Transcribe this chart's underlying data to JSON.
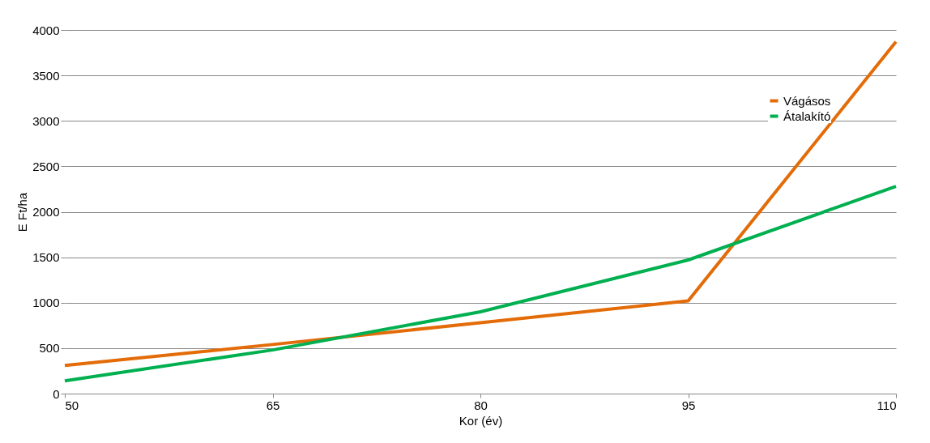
{
  "chart_data": {
    "type": "line",
    "xlabel": "Kor (év)",
    "ylabel": "E Ft/ha",
    "x": [
      50,
      65,
      80,
      95,
      110
    ],
    "series": [
      {
        "name": "Vágásos",
        "color": "#e36c09",
        "values": [
          310,
          540,
          780,
          1020,
          3870
        ]
      },
      {
        "name": "Átalakító",
        "color": "#00b050",
        "values": [
          140,
          480,
          900,
          1470,
          2280
        ]
      }
    ],
    "xlim": [
      50,
      110
    ],
    "xticks": [
      50,
      65,
      80,
      95,
      110
    ],
    "ylim": [
      0,
      4000
    ],
    "yticks": [
      0,
      500,
      1000,
      1500,
      2000,
      2500,
      3000,
      3500,
      4000
    ],
    "grid": "y",
    "legend": "top right",
    "marker": "none",
    "line_style": "solid"
  }
}
